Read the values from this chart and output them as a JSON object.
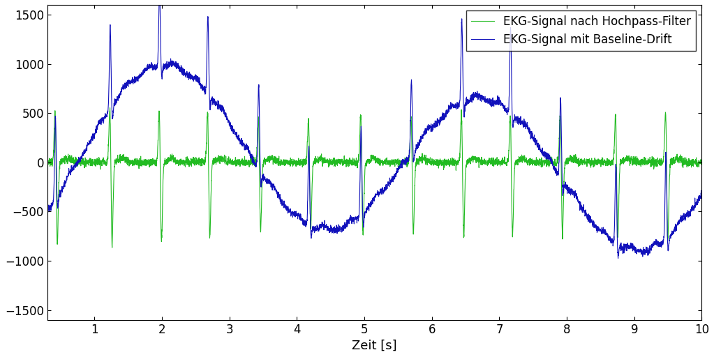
{
  "xlabel": "Zeit [s]",
  "xlim": [
    0.3,
    10.0
  ],
  "ylim": [
    -1600,
    1600
  ],
  "xticks": [
    1,
    2,
    3,
    4,
    5,
    6,
    7,
    8,
    9,
    10
  ],
  "yticks": [
    -1500,
    -1000,
    -500,
    0,
    500,
    1000,
    1500
  ],
  "color_blue": "#1111BB",
  "color_green": "#22BB22",
  "legend_labels": [
    "EKG-Signal mit Baseline-Drift",
    "EKG-Signal nach Hochpass-Filter"
  ],
  "background_color": "#ffffff",
  "linewidth": 0.8,
  "legend_fontsize": 12,
  "tick_fontsize": 12,
  "label_fontsize": 13
}
